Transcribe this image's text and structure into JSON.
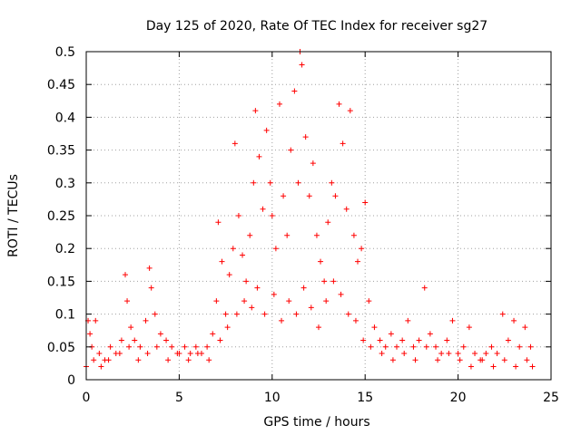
{
  "chart_data": {
    "type": "scatter",
    "title": "Day 125 of 2020, Rate Of TEC Index for receiver sg27",
    "xlabel": "GPS time / hours",
    "ylabel": "ROTI / TECUs",
    "xlim": [
      0,
      25
    ],
    "ylim": [
      0,
      0.5
    ],
    "xticks": [
      "0",
      "5",
      "10",
      "15",
      "20",
      "25"
    ],
    "yticks": [
      "0",
      "0.05",
      "0.1",
      "0.15",
      "0.2",
      "0.25",
      "0.3",
      "0.35",
      "0.4",
      "0.45",
      "0.5"
    ],
    "grid": true,
    "marker": "+",
    "color": "#ff0000",
    "series": [
      {
        "x": [
          0.1,
          0.2,
          0.3,
          0.5,
          0.7,
          1.0,
          1.3,
          1.6,
          1.9,
          2.1,
          2.2,
          2.4,
          2.6,
          2.9,
          3.2,
          3.4,
          3.5,
          3.7,
          4.0,
          4.3,
          4.6,
          5.0,
          5.3,
          5.6,
          5.9,
          6.2,
          6.5,
          6.8,
          7.0,
          7.1,
          7.3,
          7.5,
          7.7,
          7.9,
          8.0,
          8.2,
          8.4,
          8.6,
          8.8,
          9.0,
          9.1,
          9.3,
          9.5,
          9.7,
          9.9,
          10.0,
          10.2,
          10.4,
          10.6,
          10.8,
          11.0,
          11.2,
          11.4,
          11.5,
          11.6,
          11.8,
          12.0,
          12.2,
          12.4,
          12.6,
          12.8,
          13.0,
          13.2,
          13.4,
          13.6,
          13.8,
          14.0,
          14.2,
          14.4,
          14.6,
          14.8,
          15.0,
          15.2,
          15.5,
          15.8,
          16.1,
          16.4,
          16.7,
          17.0,
          17.3,
          17.6,
          17.9,
          18.2,
          18.5,
          18.8,
          19.1,
          19.4,
          19.7,
          20.0,
          20.3,
          20.6,
          20.9,
          21.2,
          21.5,
          21.8,
          22.1,
          22.4,
          22.7,
          23.0,
          23.3,
          23.6,
          23.9
        ],
        "y": [
          0.09,
          0.07,
          0.05,
          0.09,
          0.04,
          0.03,
          0.05,
          0.04,
          0.06,
          0.16,
          0.12,
          0.08,
          0.06,
          0.05,
          0.09,
          0.17,
          0.14,
          0.1,
          0.07,
          0.06,
          0.05,
          0.04,
          0.05,
          0.04,
          0.05,
          0.04,
          0.05,
          0.07,
          0.12,
          0.24,
          0.18,
          0.1,
          0.16,
          0.2,
          0.36,
          0.25,
          0.19,
          0.15,
          0.22,
          0.3,
          0.41,
          0.34,
          0.26,
          0.38,
          0.3,
          0.25,
          0.2,
          0.42,
          0.28,
          0.22,
          0.35,
          0.44,
          0.3,
          0.5,
          0.48,
          0.37,
          0.28,
          0.33,
          0.22,
          0.18,
          0.15,
          0.24,
          0.3,
          0.28,
          0.42,
          0.36,
          0.26,
          0.41,
          0.22,
          0.18,
          0.2,
          0.27,
          0.12,
          0.08,
          0.06,
          0.05,
          0.07,
          0.05,
          0.06,
          0.09,
          0.05,
          0.06,
          0.14,
          0.07,
          0.05,
          0.04,
          0.06,
          0.09,
          0.04,
          0.05,
          0.08,
          0.04,
          0.03,
          0.04,
          0.05,
          0.04,
          0.1,
          0.06,
          0.09,
          0.05,
          0.08,
          0.05
        ]
      },
      {
        "x": [
          0.0,
          0.4,
          0.8,
          1.2,
          1.8,
          2.3,
          2.8,
          3.3,
          3.8,
          4.4,
          4.9,
          5.5,
          6.0,
          6.6,
          7.2,
          7.6,
          8.1,
          8.5,
          8.9,
          9.2,
          9.6,
          10.1,
          10.5,
          10.9,
          11.3,
          11.7,
          12.1,
          12.5,
          12.9,
          13.3,
          13.7,
          14.1,
          14.5,
          14.9,
          15.3,
          15.9,
          16.5,
          17.1,
          17.7,
          18.3,
          18.9,
          19.5,
          20.1,
          20.7,
          21.3,
          21.9,
          22.5,
          23.1,
          23.7,
          24.0
        ],
        "y": [
          0.02,
          0.03,
          0.02,
          0.03,
          0.04,
          0.05,
          0.03,
          0.04,
          0.05,
          0.03,
          0.04,
          0.03,
          0.04,
          0.03,
          0.06,
          0.08,
          0.1,
          0.12,
          0.11,
          0.14,
          0.1,
          0.13,
          0.09,
          0.12,
          0.1,
          0.14,
          0.11,
          0.08,
          0.12,
          0.15,
          0.13,
          0.1,
          0.09,
          0.06,
          0.05,
          0.04,
          0.03,
          0.04,
          0.03,
          0.05,
          0.03,
          0.04,
          0.03,
          0.02,
          0.03,
          0.02,
          0.03,
          0.02,
          0.03,
          0.02
        ]
      }
    ]
  }
}
